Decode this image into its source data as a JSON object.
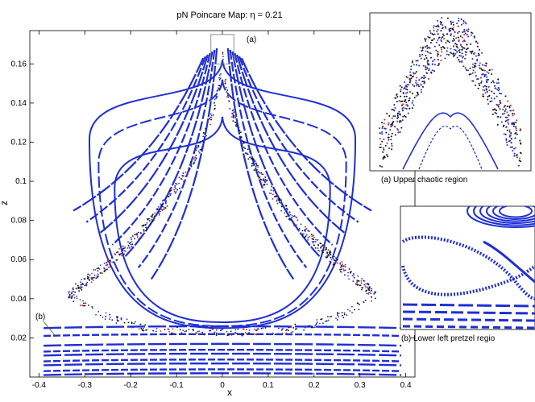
{
  "chart_data": {
    "type": "scatter",
    "title": "pN Poincare Map: η = 0.21",
    "xlabel": "x",
    "ylabel": "z",
    "xlim": [
      -0.42,
      0.42
    ],
    "ylim": [
      0.0,
      0.177
    ],
    "x_ticks": [
      -0.4,
      -0.3,
      -0.2,
      -0.1,
      0,
      0.1,
      0.2,
      0.3,
      0.4
    ],
    "y_ticks": [
      0.02,
      0.04,
      0.06,
      0.08,
      0.1,
      0.12,
      0.14,
      0.16
    ],
    "x_tick_labels": [
      "-0.4",
      "-0.3",
      "-0.2",
      "-0.1",
      "0",
      "0.1",
      "0.2",
      "0.3",
      "0.4"
    ],
    "y_tick_labels": [
      "0.02",
      "0.04",
      "0.06",
      "0.08",
      "0.1",
      "0.12",
      "0.14",
      "0.16"
    ],
    "grid": false,
    "colors": {
      "regular_orbits": "#1f2fd6",
      "chaotic": "#111111",
      "chaotic_alt": "#d42020"
    },
    "central_orbits": [
      {
        "cz": 0.103,
        "top": 0.133,
        "bot": 0.028,
        "rx": 0.235
      },
      {
        "cz": 0.116,
        "top": 0.152,
        "bot": 0.026,
        "rx": 0.27
      },
      {
        "cz": 0.128,
        "top": 0.162,
        "bot": 0.025,
        "rx": 0.29
      }
    ],
    "island_chains": [
      {
        "side": -1,
        "cz": 0.109,
        "tx": 0.012,
        "tz": 0.168,
        "bx": 0.155,
        "bz": 0.05,
        "n": 7
      },
      {
        "side": 1,
        "cz": 0.109,
        "tx": 0.012,
        "tz": 0.168,
        "bx": 0.155,
        "bz": 0.05,
        "n": 7
      }
    ],
    "lower_bands": [
      0.025,
      0.021,
      0.016,
      0.013,
      0.011,
      0.008,
      0.006,
      0.003,
      0.001
    ],
    "chaotic_boundary": {
      "tip_z": 0.173,
      "corner_x": 0.335,
      "corner_z": 0.042,
      "base_z": 0.023
    },
    "region_box": {
      "x0": -0.025,
      "x1": 0.025,
      "z0": 0.16,
      "z1": 0.175
    }
  },
  "labels": {
    "region_a": "(a)",
    "region_b": "(b)",
    "inset_a_caption": "(a) Upper chaotic region",
    "inset_b_caption": "(b) Lower left pretzel regio"
  }
}
